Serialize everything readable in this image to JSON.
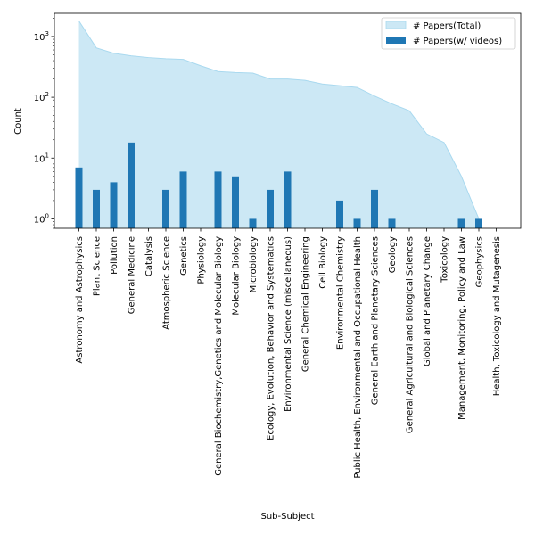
{
  "chart_data": {
    "type": "bar",
    "xlabel": "Sub-Subject",
    "ylabel": "Count",
    "yscale": "log",
    "ylim": [
      0.7,
      2400
    ],
    "legend_position": "top-right",
    "categories": [
      "Astronomy and Astrophysics",
      "Plant Science",
      "Pollution",
      "General Medicine",
      "Catalysis",
      "Atmospheric Science",
      "Genetics",
      "Physiology",
      "General Biochemistry,Genetics and Molecular Biology",
      "Molecular Biology",
      "Microbiology",
      "Ecology, Evolution, Behavior and Systematics",
      "Environmental Science (miscellaneous)",
      "General Chemical Engineering",
      "Cell Biology",
      "Environmental Chemistry",
      "Public Health, Environmental and Occupational Health",
      "General Earth and Planetary Sciences",
      "Geology",
      "General Agricultural and Biological Sciences",
      "Global and Planetary Change",
      "Toxicology",
      "Management, Monitoring, Policy and Law",
      "Geophysics",
      "Health, Toxicology and Mutagenesis"
    ],
    "series": [
      {
        "name": "# Papers(Total)",
        "kind": "area",
        "color": "#cce8f5",
        "edge_color": "#a9d9ef",
        "values": [
          1800,
          650,
          530,
          480,
          450,
          430,
          420,
          330,
          265,
          255,
          250,
          200,
          200,
          190,
          165,
          155,
          145,
          105,
          78,
          60,
          25,
          18,
          5,
          1,
          null
        ]
      },
      {
        "name": "# Papers(w/ videos)",
        "kind": "bar",
        "color": "#1f77b4",
        "values": [
          7,
          3,
          4,
          18,
          null,
          3,
          6,
          null,
          6,
          5,
          1,
          3,
          6,
          null,
          null,
          2,
          1,
          3,
          1,
          null,
          null,
          null,
          1,
          1,
          null
        ]
      }
    ],
    "yticks": [
      {
        "value": 1,
        "base": "10",
        "exp": "0"
      },
      {
        "value": 10,
        "base": "10",
        "exp": "1"
      },
      {
        "value": 100,
        "base": "10",
        "exp": "2"
      },
      {
        "value": 1000,
        "base": "10",
        "exp": "3"
      }
    ]
  }
}
